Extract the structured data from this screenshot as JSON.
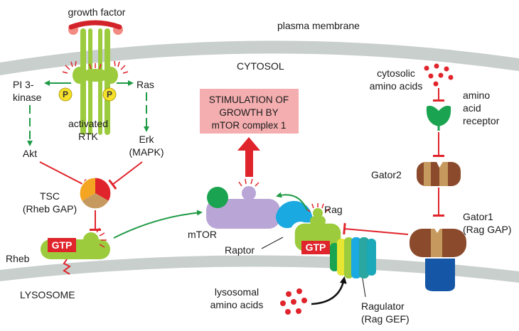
{
  "labels": {
    "growth_factor": "growth factor",
    "plasma_membrane": "plasma membrane",
    "cytosol": "CYTOSOL",
    "pi3_kinase_line1": "PI 3-",
    "pi3_kinase_line2": "kinase",
    "ras": "Ras",
    "phospho": "P",
    "activated_rtk_line1": "activated",
    "activated_rtk_line2": "RTK",
    "erk_line1": "Erk",
    "erk_line2": "(MAPK)",
    "akt": "Akt",
    "tsc_line1": "TSC",
    "tsc_line2": "(Rheb GAP)",
    "rheb": "Rheb",
    "gtp": "GTP",
    "lysosome": "LYSOSOME",
    "stimulation_line1": "STIMULATION OF",
    "stimulation_line2": "GROWTH BY",
    "stimulation_line3": "mTOR complex 1",
    "mtor": "mTOR",
    "raptor": "Raptor",
    "rag": "Rag",
    "cytosolic_aa_line1": "cytosolic",
    "cytosolic_aa_line2": "amino acids",
    "aa_receptor_line1": "amino",
    "aa_receptor_line2": "acid",
    "aa_receptor_line3": "receptor",
    "gator2": "Gator2",
    "gator1_line1": "Gator1",
    "gator1_line2": "(Rag GAP)",
    "lysosomal_aa_line1": "lysosomal",
    "lysosomal_aa_line2": "amino acids",
    "ragulator_line1": "Ragulator",
    "ragulator_line2": "(Rag GEF)"
  },
  "colors": {
    "activation_arrow": "#1f9a45",
    "inhibition": "#e0242b",
    "membrane": "#c8cfcd",
    "rtk": "#9ccb3e",
    "stimulation_box": "#f4aeb0",
    "mtor": "#b9a6d6",
    "raptor": "#1aa9e0",
    "gtp_box": "#e0242b",
    "gator2_dark": "#8b4a2b",
    "gator2_light": "#c69a5f",
    "gator1_base": "#1557a6",
    "aa_receptor": "#1aa350"
  }
}
